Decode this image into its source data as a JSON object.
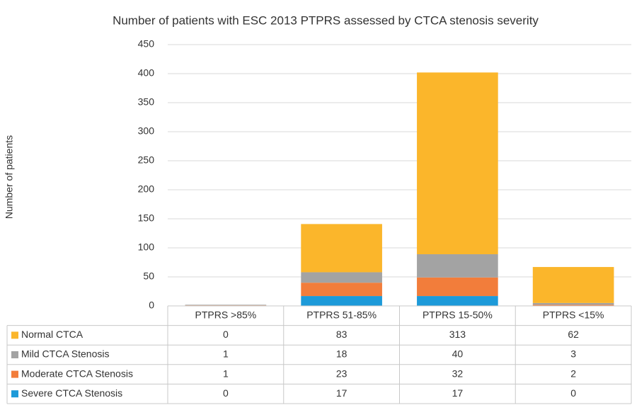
{
  "chart_data": {
    "type": "stacked-bar",
    "title": "Number of patients with ESC 2013 PTPRS assessed by CTCA stenosis severity",
    "y_label": "Number of patients",
    "categories": [
      "PTPRS >85%",
      "PTPRS 51-85%",
      "PTPRS 15-50%",
      "PTPRS <15%"
    ],
    "series": [
      {
        "name": "Normal CTCA",
        "color": "#fbb62b",
        "values": [
          0,
          83,
          313,
          62
        ]
      },
      {
        "name": "Mild CTCA Stenosis",
        "color": "#a3a3a3",
        "values": [
          1,
          18,
          40,
          3
        ]
      },
      {
        "name": "Moderate CTCA Stenosis",
        "color": "#f27d3b",
        "values": [
          1,
          23,
          32,
          2
        ]
      },
      {
        "name": "Severe CTCA Stenosis",
        "color": "#1d9ad9",
        "values": [
          0,
          17,
          17,
          0
        ]
      }
    ],
    "ylim": [
      0,
      450
    ],
    "yticks": [
      0,
      50,
      100,
      150,
      200,
      250,
      300,
      350,
      400,
      450
    ],
    "grid": true
  }
}
